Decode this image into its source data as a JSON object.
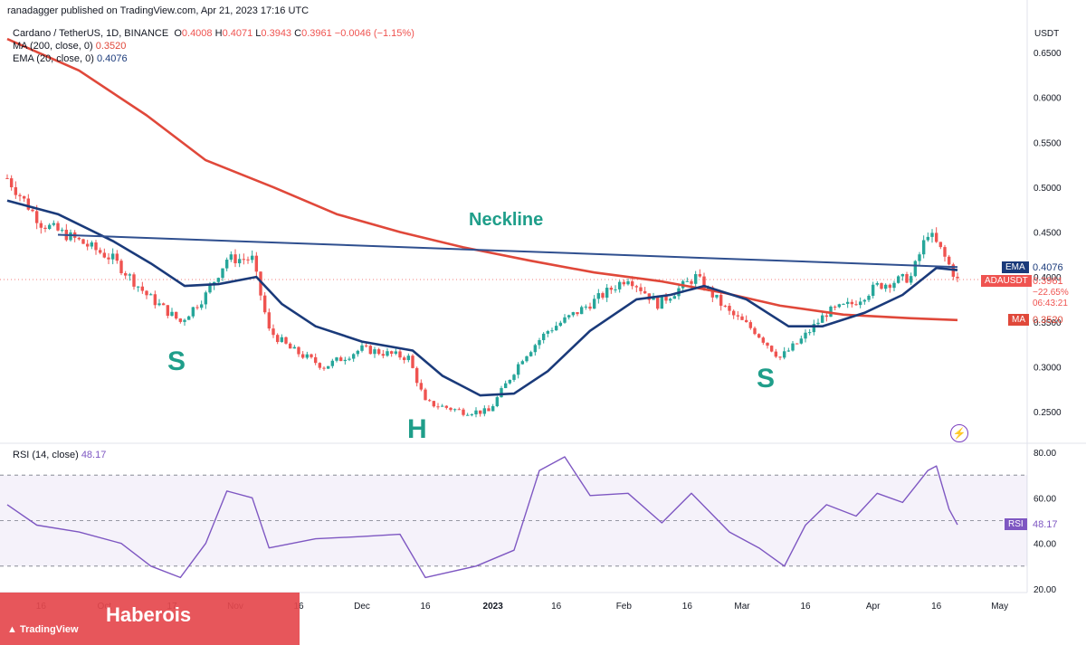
{
  "publisher_line": "ranadagger published on TradingView.com, Apr 21, 2023 17:16 UTC",
  "header": {
    "symbol": "Cardano / TetherUS, 1D, BINANCE",
    "o_label": "O",
    "o_val": "0.4008",
    "h_label": "H",
    "h_val": "0.4071",
    "l_label": "L",
    "l_val": "0.3943",
    "c_label": "C",
    "c_val": "0.3961",
    "change": "−0.0046 (−1.15%)",
    "ma_label": "MA (200, close, 0)",
    "ma_val": "0.3520",
    "ema_label": "EMA (20, close, 0)",
    "ema_val": "0.4076",
    "rsi_label": "RSI (14, close)",
    "rsi_val": "48.17"
  },
  "price_axis": {
    "unit": "USDT",
    "ticks": [
      "0.6500",
      "0.6000",
      "0.5500",
      "0.5000",
      "0.4500",
      "0.4000",
      "0.3500",
      "0.3000",
      "0.2500"
    ]
  },
  "rsi_axis": {
    "ticks": [
      "80.00",
      "60.00",
      "40.00",
      "20.00"
    ]
  },
  "time_axis": {
    "ticks": [
      "16",
      "Oct",
      "17",
      "Nov",
      "16",
      "Dec",
      "16",
      "2023",
      "16",
      "Feb",
      "16",
      "Mar",
      "16",
      "Apr",
      "16",
      "May"
    ]
  },
  "tags": {
    "ema": {
      "label": "EMA",
      "value": "0.4076"
    },
    "price": {
      "label": "ADAUSDT",
      "value": "0.3961",
      "change": "−22.65%",
      "countdown": "06:43:21"
    },
    "ma": {
      "label": "MA",
      "value": "0.3520"
    },
    "rsi": {
      "label": "RSI",
      "value": "48.17"
    }
  },
  "annotations": {
    "neckline": "Neckline",
    "left_shoulder": "S",
    "head": "H",
    "right_shoulder": "S"
  },
  "watermark": "Haberois",
  "tv_brand": "TradingView",
  "colors": {
    "up": "#26a69a",
    "down": "#ef5350",
    "ma": "#e0483a",
    "ema": "#1a3a7a",
    "rsi": "#7e57c2",
    "annotation": "#1f9e8a",
    "neckline": "#2f4f8f"
  },
  "chart_data": {
    "type": "candlestick",
    "title": "Cardano / TetherUS, 1D, BINANCE",
    "ylabel": "USDT",
    "ylim": [
      0.22,
      0.67
    ],
    "x_range": [
      "2022-09-08",
      "2023-04-21"
    ],
    "keypoints_close": [
      {
        "date": "2022-09-08",
        "value": 0.51
      },
      {
        "date": "2022-09-16",
        "value": 0.46
      },
      {
        "date": "2022-09-25",
        "value": 0.44
      },
      {
        "date": "2022-10-03",
        "value": 0.42
      },
      {
        "date": "2022-10-11",
        "value": 0.38
      },
      {
        "date": "2022-10-19",
        "value": 0.35
      },
      {
        "date": "2022-10-25",
        "value": 0.38
      },
      {
        "date": "2022-10-30",
        "value": 0.42
      },
      {
        "date": "2022-11-05",
        "value": 0.42
      },
      {
        "date": "2022-11-09",
        "value": 0.34
      },
      {
        "date": "2022-11-14",
        "value": 0.32
      },
      {
        "date": "2022-11-22",
        "value": 0.3
      },
      {
        "date": "2022-12-01",
        "value": 0.32
      },
      {
        "date": "2022-12-12",
        "value": 0.31
      },
      {
        "date": "2022-12-16",
        "value": 0.26
      },
      {
        "date": "2022-12-25",
        "value": 0.25
      },
      {
        "date": "2022-12-31",
        "value": 0.25
      },
      {
        "date": "2023-01-08",
        "value": 0.31
      },
      {
        "date": "2023-01-14",
        "value": 0.34
      },
      {
        "date": "2023-01-24",
        "value": 0.37
      },
      {
        "date": "2023-02-02",
        "value": 0.4
      },
      {
        "date": "2023-02-09",
        "value": 0.37
      },
      {
        "date": "2023-02-18",
        "value": 0.4
      },
      {
        "date": "2023-02-26",
        "value": 0.36
      },
      {
        "date": "2023-03-04",
        "value": 0.34
      },
      {
        "date": "2023-03-10",
        "value": 0.31
      },
      {
        "date": "2023-03-15",
        "value": 0.33
      },
      {
        "date": "2023-03-21",
        "value": 0.36
      },
      {
        "date": "2023-03-27",
        "value": 0.37
      },
      {
        "date": "2023-04-02",
        "value": 0.39
      },
      {
        "date": "2023-04-10",
        "value": 0.4
      },
      {
        "date": "2023-04-14",
        "value": 0.45
      },
      {
        "date": "2023-04-17",
        "value": 0.43
      },
      {
        "date": "2023-04-21",
        "value": 0.3961
      }
    ],
    "series": [
      {
        "name": "MA (200, close, 0)",
        "points": [
          {
            "date": "2022-09-08",
            "value": 0.665
          },
          {
            "date": "2022-09-25",
            "value": 0.63
          },
          {
            "date": "2022-10-11",
            "value": 0.58
          },
          {
            "date": "2022-10-25",
            "value": 0.53
          },
          {
            "date": "2022-11-10",
            "value": 0.5
          },
          {
            "date": "2022-11-25",
            "value": 0.47
          },
          {
            "date": "2022-12-10",
            "value": 0.45
          },
          {
            "date": "2022-12-25",
            "value": 0.433
          },
          {
            "date": "2023-01-10",
            "value": 0.418
          },
          {
            "date": "2023-01-25",
            "value": 0.405
          },
          {
            "date": "2023-02-10",
            "value": 0.395
          },
          {
            "date": "2023-02-25",
            "value": 0.382
          },
          {
            "date": "2023-03-10",
            "value": 0.368
          },
          {
            "date": "2023-03-25",
            "value": 0.358
          },
          {
            "date": "2023-04-10",
            "value": 0.354
          },
          {
            "date": "2023-04-21",
            "value": 0.352
          }
        ]
      },
      {
        "name": "EMA (20, close, 0)",
        "points": [
          {
            "date": "2022-09-08",
            "value": 0.485
          },
          {
            "date": "2022-09-20",
            "value": 0.47
          },
          {
            "date": "2022-10-03",
            "value": 0.44
          },
          {
            "date": "2022-10-12",
            "value": 0.415
          },
          {
            "date": "2022-10-20",
            "value": 0.39
          },
          {
            "date": "2022-10-28",
            "value": 0.392
          },
          {
            "date": "2022-11-06",
            "value": 0.4
          },
          {
            "date": "2022-11-12",
            "value": 0.37
          },
          {
            "date": "2022-11-20",
            "value": 0.345
          },
          {
            "date": "2022-12-01",
            "value": 0.328
          },
          {
            "date": "2022-12-13",
            "value": 0.318
          },
          {
            "date": "2022-12-20",
            "value": 0.29
          },
          {
            "date": "2022-12-29",
            "value": 0.268
          },
          {
            "date": "2023-01-06",
            "value": 0.27
          },
          {
            "date": "2023-01-14",
            "value": 0.295
          },
          {
            "date": "2023-01-24",
            "value": 0.34
          },
          {
            "date": "2023-02-04",
            "value": 0.375
          },
          {
            "date": "2023-02-12",
            "value": 0.38
          },
          {
            "date": "2023-02-20",
            "value": 0.39
          },
          {
            "date": "2023-03-02",
            "value": 0.375
          },
          {
            "date": "2023-03-12",
            "value": 0.345
          },
          {
            "date": "2023-03-20",
            "value": 0.345
          },
          {
            "date": "2023-03-30",
            "value": 0.36
          },
          {
            "date": "2023-04-08",
            "value": 0.38
          },
          {
            "date": "2023-04-16",
            "value": 0.41
          },
          {
            "date": "2023-04-21",
            "value": 0.4076
          }
        ]
      },
      {
        "name": "Neckline",
        "points": [
          {
            "date": "2022-09-20",
            "value": 0.447
          },
          {
            "date": "2023-04-21",
            "value": 0.411
          }
        ]
      }
    ],
    "rsi": {
      "name": "RSI (14, close)",
      "ylim": [
        20,
        80
      ],
      "levels": [
        70,
        50,
        30
      ],
      "points": [
        {
          "date": "2022-09-08",
          "value": 57
        },
        {
          "date": "2022-09-15",
          "value": 48
        },
        {
          "date": "2022-09-25",
          "value": 45
        },
        {
          "date": "2022-10-05",
          "value": 40
        },
        {
          "date": "2022-10-12",
          "value": 30
        },
        {
          "date": "2022-10-19",
          "value": 25
        },
        {
          "date": "2022-10-25",
          "value": 40
        },
        {
          "date": "2022-10-30",
          "value": 63
        },
        {
          "date": "2022-11-05",
          "value": 60
        },
        {
          "date": "2022-11-09",
          "value": 38
        },
        {
          "date": "2022-11-20",
          "value": 42
        },
        {
          "date": "2022-12-01",
          "value": 43
        },
        {
          "date": "2022-12-10",
          "value": 44
        },
        {
          "date": "2022-12-16",
          "value": 25
        },
        {
          "date": "2022-12-28",
          "value": 30
        },
        {
          "date": "2023-01-06",
          "value": 37
        },
        {
          "date": "2023-01-12",
          "value": 72
        },
        {
          "date": "2023-01-18",
          "value": 78
        },
        {
          "date": "2023-01-24",
          "value": 61
        },
        {
          "date": "2023-02-02",
          "value": 62
        },
        {
          "date": "2023-02-10",
          "value": 49
        },
        {
          "date": "2023-02-17",
          "value": 62
        },
        {
          "date": "2023-02-26",
          "value": 45
        },
        {
          "date": "2023-03-05",
          "value": 38
        },
        {
          "date": "2023-03-11",
          "value": 30
        },
        {
          "date": "2023-03-16",
          "value": 48
        },
        {
          "date": "2023-03-21",
          "value": 57
        },
        {
          "date": "2023-03-28",
          "value": 52
        },
        {
          "date": "2023-04-02",
          "value": 62
        },
        {
          "date": "2023-04-08",
          "value": 58
        },
        {
          "date": "2023-04-14",
          "value": 72
        },
        {
          "date": "2023-04-16",
          "value": 74
        },
        {
          "date": "2023-04-19",
          "value": 55
        },
        {
          "date": "2023-04-21",
          "value": 48.17
        }
      ]
    }
  }
}
